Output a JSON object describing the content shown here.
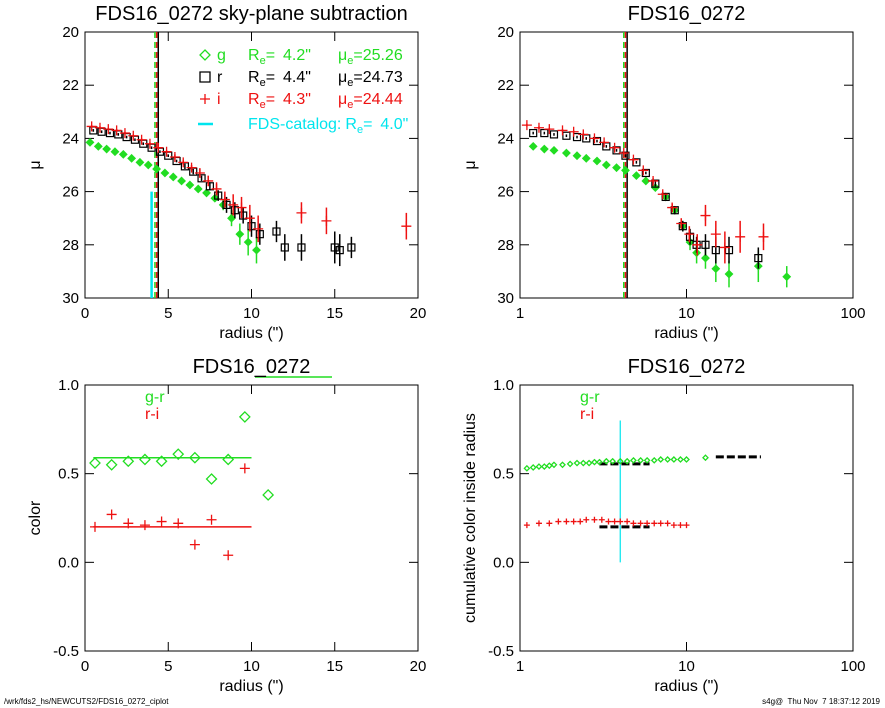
{
  "chart_data": [
    {
      "type": "scatter",
      "title": "FDS16_0272 sky-plane subtraction",
      "xlabel": "radius (\")",
      "ylabel": "μ",
      "xlim": [
        0,
        20
      ],
      "xticks": [
        0,
        5,
        10,
        15,
        20
      ],
      "ylim": [
        30,
        20
      ],
      "yticks": [
        20,
        22,
        24,
        26,
        28,
        30
      ],
      "xlog": false,
      "legend_text": {
        "re": "R",
        "mu": "μ",
        "sub": "e",
        "eq": "="
      },
      "series": [
        {
          "name": "g",
          "color": "#22dd22",
          "marker": "diamond",
          "re": 4.2,
          "re_label": "4.2\"",
          "mue": 25.26,
          "x": [
            0.3,
            0.8,
            1.3,
            1.8,
            2.3,
            2.8,
            3.3,
            3.8,
            4.3,
            4.8,
            5.3,
            5.8,
            6.3,
            6.8,
            7.3,
            7.8,
            8.3,
            8.8,
            9.3,
            9.8,
            10.3
          ],
          "values": [
            24.15,
            24.3,
            24.4,
            24.5,
            24.6,
            24.75,
            24.9,
            25.0,
            25.15,
            25.3,
            25.45,
            25.6,
            25.75,
            25.9,
            26.05,
            26.25,
            26.5,
            27.0,
            27.6,
            27.9,
            28.2
          ],
          "errors": [
            0.05,
            0.05,
            0.05,
            0.05,
            0.05,
            0.05,
            0.05,
            0.05,
            0.05,
            0.05,
            0.05,
            0.05,
            0.05,
            0.05,
            0.1,
            0.1,
            0.2,
            0.3,
            0.4,
            0.5,
            0.5
          ]
        },
        {
          "name": "r",
          "color": "#000000",
          "marker": "square",
          "re": 4.4,
          "re_label": "4.4\"",
          "mue": 24.73,
          "x": [
            0.5,
            1,
            1.5,
            2,
            2.5,
            3,
            3.5,
            4,
            4.5,
            5,
            5.5,
            6,
            6.5,
            7,
            7.5,
            8,
            8.5,
            9,
            9.5,
            10,
            10.5,
            11.5,
            12,
            13,
            15,
            15.3,
            16
          ],
          "values": [
            23.7,
            23.75,
            23.8,
            23.85,
            23.95,
            24.05,
            24.2,
            24.35,
            24.5,
            24.65,
            24.85,
            25.05,
            25.25,
            25.5,
            25.8,
            26.15,
            26.5,
            26.7,
            26.9,
            27.3,
            27.6,
            27.5,
            28.1,
            28.1,
            28.1,
            28.2,
            28.1
          ],
          "errors": [
            0.05,
            0.05,
            0.05,
            0.05,
            0.05,
            0.05,
            0.05,
            0.05,
            0.05,
            0.05,
            0.05,
            0.1,
            0.1,
            0.1,
            0.15,
            0.2,
            0.3,
            0.3,
            0.3,
            0.4,
            0.4,
            0.4,
            0.5,
            0.5,
            0.6,
            0.6,
            0.4
          ]
        },
        {
          "name": "i",
          "color": "#ee1111",
          "marker": "plus",
          "re": 4.3,
          "re_label": "4.3\"",
          "mue": 24.44,
          "x": [
            0.4,
            0.9,
            1.4,
            1.9,
            2.4,
            2.9,
            3.4,
            3.9,
            4.4,
            4.9,
            5.4,
            5.9,
            6.4,
            6.9,
            7.4,
            7.9,
            8.4,
            8.9,
            9.4,
            9.9,
            10.4,
            13,
            14.5,
            19.3
          ],
          "values": [
            23.55,
            23.6,
            23.65,
            23.7,
            23.8,
            23.9,
            24.05,
            24.2,
            24.35,
            24.5,
            24.7,
            24.9,
            25.1,
            25.3,
            25.6,
            25.9,
            26.3,
            26.5,
            26.6,
            27.0,
            27.4,
            26.8,
            27.1,
            27.3
          ],
          "errors": [
            0.05,
            0.05,
            0.05,
            0.05,
            0.05,
            0.05,
            0.05,
            0.05,
            0.05,
            0.05,
            0.1,
            0.1,
            0.1,
            0.15,
            0.2,
            0.25,
            0.3,
            0.4,
            0.4,
            0.5,
            0.5,
            0.4,
            0.5,
            0.5
          ]
        }
      ],
      "catalog": {
        "name": "FDS-catalog:",
        "re": 4.0,
        "re_label": "4.0\"",
        "color": "#00e5ee",
        "ylim": [
          30,
          26
        ]
      }
    },
    {
      "type": "scatter",
      "title": "FDS16_0272",
      "xlabel": "radius (\")",
      "ylabel": "μ",
      "xlim": [
        1,
        100
      ],
      "xticks": [
        1,
        10,
        100
      ],
      "ylim": [
        30,
        20
      ],
      "yticks": [
        20,
        22,
        24,
        26,
        28,
        30
      ],
      "xlog": true,
      "re_lines": [
        {
          "value": 4.2,
          "color": "#22dd22"
        },
        {
          "value": 4.4,
          "color": "#000000"
        },
        {
          "value": 4.3,
          "color": "#ee1111"
        }
      ],
      "series": [
        {
          "color": "#22dd22",
          "marker": "diamond",
          "x": [
            1.2,
            1.4,
            1.6,
            1.9,
            2.2,
            2.5,
            2.9,
            3.3,
            3.8,
            4.3,
            5,
            5.7,
            6.5,
            7.5,
            8.5,
            9.5,
            10.5,
            11.5,
            13,
            15,
            18,
            27,
            40
          ],
          "values": [
            24.3,
            24.4,
            24.45,
            24.55,
            24.65,
            24.75,
            24.85,
            25.0,
            25.1,
            25.2,
            25.4,
            25.6,
            25.85,
            26.2,
            26.7,
            27.3,
            27.9,
            28.3,
            28.5,
            28.9,
            29.1,
            28.8,
            29.2
          ],
          "errors": [
            0.05,
            0.05,
            0.05,
            0.05,
            0.05,
            0.05,
            0.05,
            0.05,
            0.05,
            0.05,
            0.05,
            0.05,
            0.1,
            0.1,
            0.15,
            0.2,
            0.3,
            0.4,
            0.4,
            0.5,
            0.5,
            0.6,
            0.4
          ]
        },
        {
          "color": "#000000",
          "marker": "square",
          "x": [
            1.2,
            1.4,
            1.6,
            1.9,
            2.2,
            2.5,
            2.9,
            3.3,
            3.8,
            4.3,
            5,
            5.7,
            6.5,
            7.5,
            8.5,
            9.5,
            10.5,
            11.5,
            13,
            15,
            18,
            27
          ],
          "values": [
            23.8,
            23.8,
            23.85,
            23.9,
            23.95,
            24.0,
            24.1,
            24.3,
            24.45,
            24.65,
            24.9,
            25.3,
            25.7,
            26.2,
            26.7,
            27.3,
            27.7,
            28.0,
            28.0,
            28.2,
            28.2,
            28.5
          ],
          "errors": [
            0.05,
            0.05,
            0.05,
            0.05,
            0.05,
            0.05,
            0.05,
            0.05,
            0.05,
            0.05,
            0.05,
            0.05,
            0.1,
            0.1,
            0.15,
            0.2,
            0.3,
            0.3,
            0.4,
            0.5,
            0.5,
            0.4
          ]
        },
        {
          "color": "#ee1111",
          "marker": "plus",
          "x": [
            1.1,
            1.3,
            1.5,
            1.8,
            2.1,
            2.4,
            2.8,
            3.2,
            3.7,
            4.2,
            4.8,
            5.5,
            6.3,
            7.2,
            8.2,
            9.3,
            10.4,
            11.6,
            13,
            15,
            17,
            21,
            29
          ],
          "values": [
            23.5,
            23.6,
            23.65,
            23.7,
            23.75,
            23.85,
            24.0,
            24.15,
            24.35,
            24.55,
            24.8,
            25.2,
            25.6,
            26.1,
            26.6,
            27.2,
            27.6,
            28.0,
            26.9,
            27.6,
            28.1,
            27.7,
            27.7
          ],
          "errors": [
            0.05,
            0.05,
            0.05,
            0.05,
            0.05,
            0.05,
            0.05,
            0.05,
            0.05,
            0.05,
            0.05,
            0.05,
            0.1,
            0.1,
            0.15,
            0.2,
            0.3,
            0.4,
            0.4,
            0.5,
            0.6,
            0.6,
            0.5
          ]
        }
      ]
    },
    {
      "type": "scatter",
      "title": "FDS16_0272",
      "xlabel": "radius (\")",
      "ylabel": "color",
      "xlim": [
        0,
        20
      ],
      "xticks": [
        0,
        5,
        10,
        15,
        20
      ],
      "ylim": [
        -0.5,
        1.0
      ],
      "xlog": false,
      "yticks": [
        {
          "value": -0.5,
          "label": "-0.5"
        },
        {
          "value": 0,
          "label": "0.0"
        },
        {
          "value": 0.5,
          "label": "0.5"
        },
        {
          "value": 1,
          "label": "1.0"
        }
      ],
      "series": [
        {
          "name": "g-r",
          "color": "#22dd22",
          "marker": "diamond-open",
          "x": [
            0.6,
            1.6,
            2.6,
            3.6,
            4.6,
            5.6,
            6.6,
            7.6,
            8.6,
            9.6,
            11
          ],
          "values": [
            0.56,
            0.55,
            0.57,
            0.58,
            0.57,
            0.61,
            0.59,
            0.47,
            0.58,
            0.82,
            0.38
          ],
          "fit": {
            "value": 0.59,
            "x": [
              0.5,
              10
            ]
          }
        },
        {
          "name": "r-i",
          "color": "#ee1111",
          "marker": "plus",
          "x": [
            0.6,
            1.6,
            2.6,
            3.6,
            4.6,
            5.6,
            6.6,
            7.6,
            8.6,
            9.6
          ],
          "values": [
            0.2,
            0.27,
            0.22,
            0.21,
            0.23,
            0.22,
            0.1,
            0.24,
            0.04,
            0.53
          ],
          "fit": {
            "value": 0.2,
            "x": [
              0.5,
              10
            ]
          }
        }
      ]
    },
    {
      "type": "scatter",
      "title": "FDS16_0272",
      "xlabel": "radius (\")",
      "ylabel": "cumulative color inside radius",
      "xlim": [
        1,
        100
      ],
      "xticks": [
        1,
        10,
        100
      ],
      "ylim": [
        -0.5,
        1.0
      ],
      "xlog": true,
      "yticks": [
        {
          "value": -0.5,
          "label": "-0.5"
        },
        {
          "value": 0,
          "label": "0.0"
        },
        {
          "value": 0.5,
          "label": "0.5"
        },
        {
          "value": 1,
          "label": "1.0"
        }
      ],
      "series": [
        {
          "name": "g-r",
          "color": "#22dd22",
          "marker": "diamond-small",
          "x": [
            1.1,
            1.2,
            1.3,
            1.4,
            1.5,
            1.6,
            1.8,
            2.0,
            2.2,
            2.4,
            2.6,
            2.8,
            3.0,
            3.3,
            3.6,
            4.0,
            4.4,
            4.8,
            5.3,
            5.8,
            6.4,
            7.0,
            7.7,
            8.4,
            9.2,
            10,
            13
          ],
          "values": [
            0.53,
            0.535,
            0.54,
            0.54,
            0.545,
            0.55,
            0.55,
            0.555,
            0.56,
            0.56,
            0.56,
            0.565,
            0.565,
            0.57,
            0.57,
            0.57,
            0.57,
            0.575,
            0.575,
            0.575,
            0.575,
            0.58,
            0.58,
            0.58,
            0.58,
            0.58,
            0.59
          ]
        },
        {
          "name": "r-i",
          "color": "#ee1111",
          "marker": "plus-small",
          "x": [
            1.1,
            1.3,
            1.5,
            1.7,
            1.9,
            2.1,
            2.3,
            2.5,
            2.8,
            3.1,
            3.4,
            3.7,
            4.0,
            4.4,
            4.8,
            5.3,
            5.8,
            6.4,
            7.0,
            7.7,
            8.4,
            9.2,
            10
          ],
          "values": [
            0.21,
            0.22,
            0.22,
            0.23,
            0.23,
            0.23,
            0.23,
            0.24,
            0.24,
            0.24,
            0.23,
            0.23,
            0.23,
            0.23,
            0.22,
            0.22,
            0.22,
            0.22,
            0.22,
            0.22,
            0.21,
            0.21,
            0.21
          ]
        }
      ],
      "segments": [
        {
          "x": [
            3,
            6
          ],
          "value": 0.555
        },
        {
          "x": [
            15,
            28
          ],
          "value": 0.595
        },
        {
          "x": [
            3,
            6
          ],
          "value": 0.2
        }
      ],
      "vline": {
        "x": 4,
        "ylim": [
          0,
          0.8
        ],
        "color": "#00e5ee"
      }
    }
  ],
  "footer": {
    "left": "/wrk/fds2_hs/NEWCUTS2/FDS16_0272_ciplot",
    "right": "s4g@  Thu Nov  7 18:37:12 2019"
  }
}
